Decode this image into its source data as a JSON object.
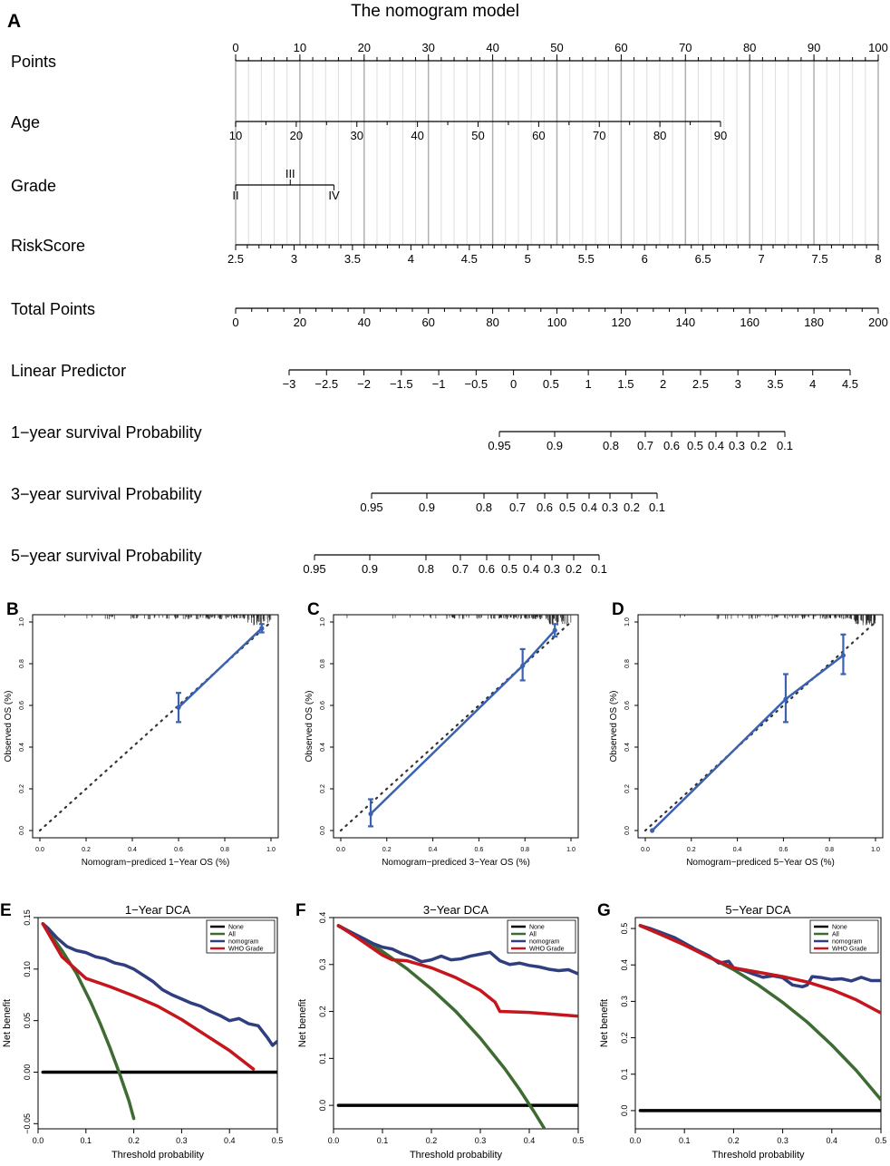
{
  "figure": {
    "title": "The nomogram model",
    "panel_labels": [
      "A",
      "B",
      "C",
      "D",
      "E",
      "F",
      "G"
    ]
  },
  "chart_data": [
    {
      "type": "nomogram",
      "panel": "A",
      "title": "The nomogram model",
      "scales": [
        {
          "label": "Points",
          "min": 0,
          "max": 100,
          "ticks": [
            0,
            10,
            20,
            30,
            40,
            50,
            60,
            70,
            80,
            90,
            100
          ]
        },
        {
          "label": "Age",
          "min": 10,
          "max": 90,
          "ticks": [
            10,
            20,
            30,
            40,
            50,
            60,
            70,
            80,
            90
          ]
        },
        {
          "label": "Grade",
          "levels": [
            {
              "name": "II",
              "points": 0
            },
            {
              "name": "III",
              "points": 8.5
            },
            {
              "name": "IV",
              "points": 15.3
            }
          ]
        },
        {
          "label": "RiskScore",
          "min": 2.5,
          "max": 8,
          "ticks": [
            2.5,
            3,
            3.5,
            4,
            4.5,
            5,
            5.5,
            6,
            6.5,
            7,
            7.5,
            8
          ]
        },
        {
          "label": "Total Points",
          "min": 0,
          "max": 200,
          "ticks": [
            0,
            20,
            40,
            60,
            80,
            100,
            120,
            140,
            160,
            180,
            200
          ]
        },
        {
          "label": "Linear Predictor",
          "min": -3,
          "max": 4.5,
          "ticks": [
            "−3",
            "−2.5",
            "−2",
            "−1.5",
            "−1",
            "−0.5",
            "0",
            "0.5",
            "1",
            "1.5",
            "2",
            "2.5",
            "3",
            "3.5",
            "4",
            "4.5"
          ]
        },
        {
          "label": "1−year survival Probability",
          "ticks": [
            "0.95",
            "0.9",
            "0.8",
            "0.7",
            "0.6",
            "0.5",
            "0.4",
            "0.3",
            "0.2",
            "0.1"
          ]
        },
        {
          "label": "3−year survival Probability",
          "ticks": [
            "0.95",
            "0.9",
            "0.8",
            "0.7",
            "0.6",
            "0.5",
            "0.4",
            "0.3",
            "0.2",
            "0.1"
          ]
        },
        {
          "label": "5−year survival Probability",
          "ticks": [
            "0.95",
            "0.9",
            "0.8",
            "0.7",
            "0.6",
            "0.5",
            "0.4",
            "0.3",
            "0.2",
            "0.1"
          ]
        }
      ]
    },
    {
      "type": "line",
      "panel": "B",
      "xlabel": "Nomogram−prediced 1−Year OS (%)",
      "ylabel": "Observed OS (%)",
      "xlim": [
        0,
        1
      ],
      "ylim": [
        0,
        1
      ],
      "ticks": [
        "0.0",
        "0.2",
        "0.4",
        "0.6",
        "0.8",
        "1.0"
      ],
      "points": [
        {
          "x": 0.6,
          "y": 0.59,
          "lo": 0.52,
          "hi": 0.66
        },
        {
          "x": 0.96,
          "y": 0.97,
          "lo": 0.95,
          "hi": 0.99
        }
      ]
    },
    {
      "type": "line",
      "panel": "C",
      "xlabel": "Nomogram−prediced 3−Year OS (%)",
      "ylabel": "Observed OS (%)",
      "xlim": [
        0,
        1
      ],
      "ylim": [
        0,
        1
      ],
      "ticks": [
        "0.0",
        "0.2",
        "0.4",
        "0.6",
        "0.8",
        "1.0"
      ],
      "points": [
        {
          "x": 0.13,
          "y": 0.08,
          "lo": 0.02,
          "hi": 0.15
        },
        {
          "x": 0.79,
          "y": 0.79,
          "lo": 0.72,
          "hi": 0.87
        },
        {
          "x": 0.93,
          "y": 0.96,
          "lo": 0.93,
          "hi": 0.99
        }
      ]
    },
    {
      "type": "line",
      "panel": "D",
      "xlabel": "Nomogram−prediced 5−Year OS (%)",
      "ylabel": "Observed OS (%)",
      "xlim": [
        0,
        1
      ],
      "ylim": [
        0,
        1
      ],
      "ticks": [
        "0.0",
        "0.2",
        "0.4",
        "0.6",
        "0.8",
        "1.0"
      ],
      "points": [
        {
          "x": 0.03,
          "y": 0.0,
          "lo": 0.0,
          "hi": 0.0
        },
        {
          "x": 0.61,
          "y": 0.63,
          "lo": 0.52,
          "hi": 0.75
        },
        {
          "x": 0.86,
          "y": 0.84,
          "lo": 0.75,
          "hi": 0.94
        }
      ]
    },
    {
      "type": "line",
      "panel": "E",
      "title": "1−Year DCA",
      "xlabel": "Threshold probability",
      "ylabel": "Net benefit",
      "xlim": [
        0,
        0.5
      ],
      "ylim": [
        -0.055,
        0.15
      ],
      "xticks": [
        "0.0",
        "0.1",
        "0.2",
        "0.3",
        "0.4",
        "0.5"
      ],
      "yticks": [
        "−0.05",
        "0.00",
        "0.05",
        "0.10",
        "0.15"
      ],
      "legend": [
        "None",
        "All",
        "nomogram",
        "WHO Grade"
      ],
      "series": [
        {
          "name": "None",
          "x": [
            0.01,
            0.5
          ],
          "y": [
            0,
            0
          ]
        },
        {
          "name": "All",
          "x": [
            0.01,
            0.05,
            0.08,
            0.11,
            0.13,
            0.15,
            0.17,
            0.19,
            0.2
          ],
          "y": [
            0.144,
            0.118,
            0.096,
            0.068,
            0.047,
            0.024,
            -0.001,
            -0.028,
            -0.045
          ]
        },
        {
          "name": "nomogram",
          "x": [
            0.01,
            0.02,
            0.04,
            0.06,
            0.08,
            0.1,
            0.12,
            0.14,
            0.16,
            0.18,
            0.2,
            0.22,
            0.24,
            0.26,
            0.28,
            0.3,
            0.32,
            0.34,
            0.36,
            0.38,
            0.4,
            0.42,
            0.44,
            0.46,
            0.48,
            0.49,
            0.5
          ],
          "y": [
            0.144,
            0.14,
            0.13,
            0.122,
            0.118,
            0.116,
            0.112,
            0.11,
            0.106,
            0.104,
            0.1,
            0.094,
            0.088,
            0.08,
            0.075,
            0.071,
            0.067,
            0.064,
            0.059,
            0.055,
            0.05,
            0.052,
            0.047,
            0.045,
            0.033,
            0.026,
            0.03
          ]
        },
        {
          "name": "WHO Grade",
          "x": [
            0.01,
            0.05,
            0.1,
            0.15,
            0.2,
            0.25,
            0.3,
            0.35,
            0.4,
            0.45
          ],
          "y": [
            0.144,
            0.112,
            0.091,
            0.083,
            0.074,
            0.064,
            0.051,
            0.036,
            0.021,
            0.003
          ]
        }
      ]
    },
    {
      "type": "line",
      "panel": "F",
      "title": "3−Year DCA",
      "xlabel": "Threshold probability",
      "ylabel": "Net benefit",
      "xlim": [
        0,
        0.5
      ],
      "ylim": [
        -0.05,
        0.4
      ],
      "xticks": [
        "0.0",
        "0.1",
        "0.2",
        "0.3",
        "0.4",
        "0.5"
      ],
      "yticks": [
        "0.0",
        "0.1",
        "0.2",
        "0.3",
        "0.4"
      ],
      "legend": [
        "None",
        "All",
        "nomogram",
        "WHO Grade"
      ],
      "series": [
        {
          "name": "None",
          "x": [
            0.01,
            0.5
          ],
          "y": [
            0,
            0
          ]
        },
        {
          "name": "All",
          "x": [
            0.01,
            0.05,
            0.1,
            0.15,
            0.2,
            0.25,
            0.3,
            0.35,
            0.38,
            0.41,
            0.43
          ],
          "y": [
            0.382,
            0.36,
            0.328,
            0.291,
            0.248,
            0.2,
            0.143,
            0.078,
            0.034,
            -0.014,
            -0.048
          ]
        },
        {
          "name": "nomogram",
          "x": [
            0.01,
            0.03,
            0.06,
            0.08,
            0.1,
            0.12,
            0.14,
            0.16,
            0.18,
            0.2,
            0.22,
            0.24,
            0.26,
            0.28,
            0.3,
            0.32,
            0.34,
            0.36,
            0.38,
            0.4,
            0.42,
            0.44,
            0.46,
            0.48,
            0.5
          ],
          "y": [
            0.383,
            0.372,
            0.356,
            0.345,
            0.337,
            0.333,
            0.323,
            0.316,
            0.306,
            0.31,
            0.318,
            0.31,
            0.312,
            0.318,
            0.322,
            0.326,
            0.308,
            0.3,
            0.303,
            0.298,
            0.295,
            0.29,
            0.287,
            0.289,
            0.28
          ]
        },
        {
          "name": "WHO Grade",
          "x": [
            0.01,
            0.05,
            0.1,
            0.12,
            0.15,
            0.2,
            0.25,
            0.3,
            0.33,
            0.34,
            0.4,
            0.45,
            0.5
          ],
          "y": [
            0.383,
            0.356,
            0.32,
            0.31,
            0.308,
            0.293,
            0.272,
            0.245,
            0.22,
            0.2,
            0.198,
            0.194,
            0.19
          ]
        }
      ]
    },
    {
      "type": "line",
      "panel": "G",
      "title": "5−Year DCA",
      "xlabel": "Threshold probability",
      "ylabel": "Net benefit",
      "xlim": [
        0,
        0.5
      ],
      "ylim": [
        -0.05,
        0.53
      ],
      "xticks": [
        "0.0",
        "0.1",
        "0.2",
        "0.3",
        "0.4",
        "0.5"
      ],
      "yticks": [
        "0.0",
        "0.1",
        "0.2",
        "0.3",
        "0.4",
        "0.5"
      ],
      "legend": [
        "None",
        "All",
        "nomogram",
        "WHO Grade"
      ],
      "series": [
        {
          "name": "None",
          "x": [
            0.01,
            0.5
          ],
          "y": [
            0,
            0
          ]
        },
        {
          "name": "All",
          "x": [
            0.01,
            0.05,
            0.1,
            0.15,
            0.2,
            0.25,
            0.3,
            0.35,
            0.4,
            0.45,
            0.5
          ],
          "y": [
            0.508,
            0.485,
            0.455,
            0.422,
            0.387,
            0.345,
            0.297,
            0.243,
            0.18,
            0.11,
            0.03
          ]
        },
        {
          "name": "nomogram",
          "x": [
            0.01,
            0.03,
            0.05,
            0.08,
            0.1,
            0.12,
            0.15,
            0.17,
            0.19,
            0.2,
            0.22,
            0.24,
            0.26,
            0.28,
            0.3,
            0.32,
            0.34,
            0.35,
            0.36,
            0.38,
            0.4,
            0.42,
            0.44,
            0.46,
            0.48,
            0.5
          ],
          "y": [
            0.508,
            0.5,
            0.49,
            0.475,
            0.46,
            0.445,
            0.425,
            0.405,
            0.41,
            0.392,
            0.385,
            0.375,
            0.366,
            0.37,
            0.365,
            0.345,
            0.34,
            0.345,
            0.368,
            0.365,
            0.36,
            0.362,
            0.356,
            0.366,
            0.357,
            0.357
          ]
        },
        {
          "name": "WHO Grade",
          "x": [
            0.01,
            0.05,
            0.1,
            0.15,
            0.2,
            0.25,
            0.3,
            0.35,
            0.4,
            0.45,
            0.5
          ],
          "y": [
            0.508,
            0.485,
            0.455,
            0.421,
            0.392,
            0.38,
            0.368,
            0.353,
            0.332,
            0.304,
            0.268
          ]
        }
      ]
    }
  ]
}
